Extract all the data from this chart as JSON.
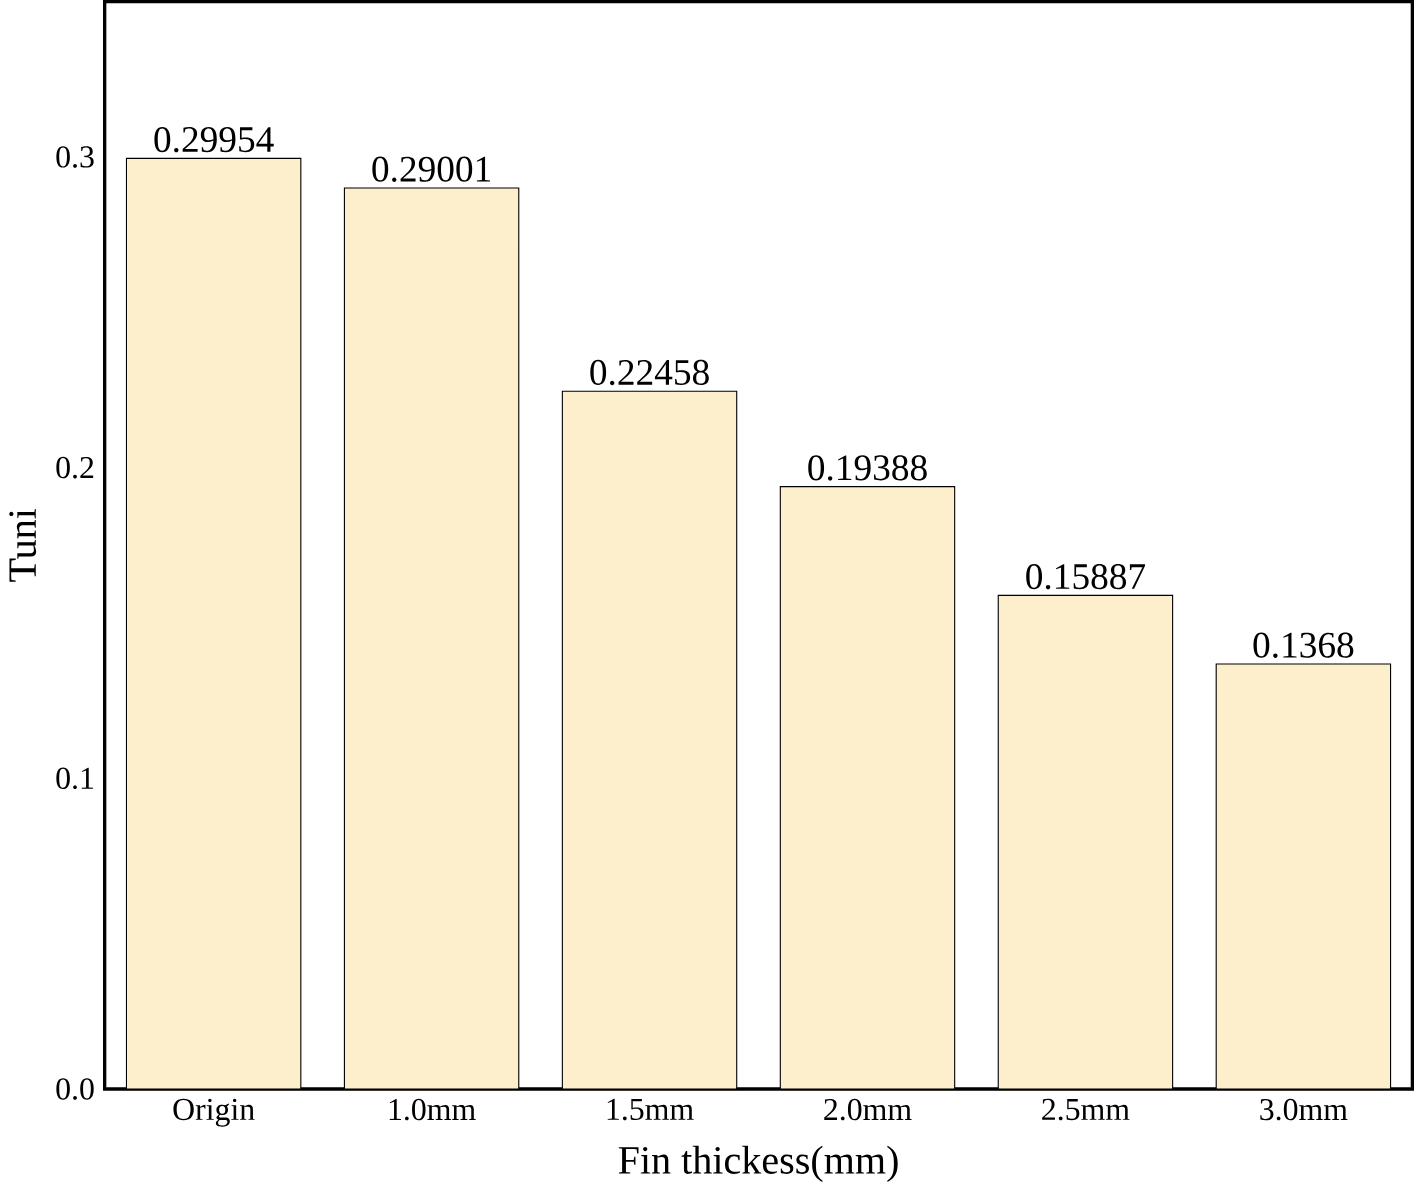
{
  "chart_data": {
    "type": "bar",
    "xlabel": "Fin thickess(mm)",
    "ylabel": "Tuni",
    "categories": [
      "Origin",
      "1.0mm",
      "1.5mm",
      "2.0mm",
      "2.5mm",
      "3.0mm"
    ],
    "values": [
      0.29954,
      0.29001,
      0.22458,
      0.19388,
      0.15887,
      0.1368
    ],
    "color": "#fdefcc",
    "ylim": [
      0,
      0.35
    ],
    "yticks": [
      {
        "value": 0,
        "label": "0.0"
      },
      0.1,
      0.2,
      0.3
    ],
    "data_labels": true,
    "grid": false
  }
}
